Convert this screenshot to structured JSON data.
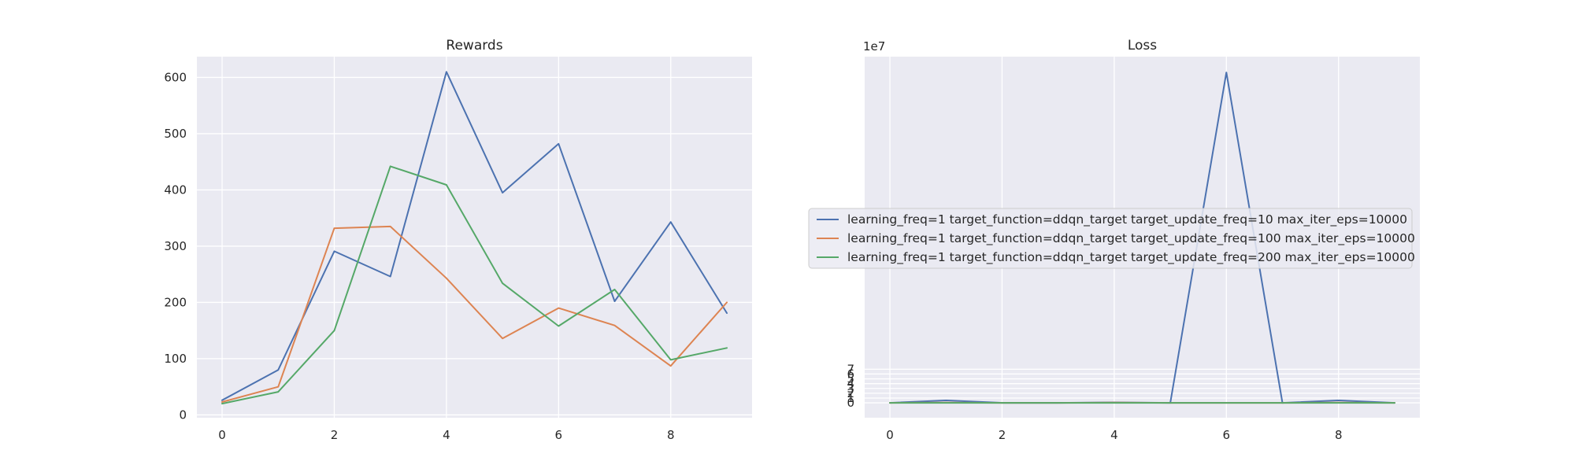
{
  "colors": {
    "background": "#ffffff",
    "plot_area": "#eaeaf2",
    "grid": "#ffffff",
    "series": [
      "#4c72b0",
      "#dd8452",
      "#55a868"
    ]
  },
  "legend": {
    "placement": "center-right",
    "labels": [
      "learning_freq=1 target_function=ddqn_target target_update_freq=10 max_iter_eps=10000",
      "learning_freq=1 target_function=ddqn_target target_update_freq=100 max_iter_eps=10000",
      "learning_freq=1 target_function=ddqn_target target_update_freq=200 max_iter_eps=10000"
    ]
  },
  "chart_data": [
    {
      "type": "line",
      "title": "Rewards",
      "xlabel": "",
      "ylabel": "",
      "grid": true,
      "x": [
        0,
        1,
        2,
        3,
        4,
        5,
        6,
        7,
        8,
        9
      ],
      "xlim": [
        -0.45,
        9.45
      ],
      "ylim": [
        -5,
        637
      ],
      "xticks": [
        0,
        2,
        4,
        6,
        8
      ],
      "yticks": [
        0,
        100,
        200,
        300,
        400,
        500,
        600
      ],
      "series": [
        {
          "values": [
            26,
            80,
            291,
            246,
            610,
            395,
            482,
            202,
            343,
            181
          ]
        },
        {
          "values": [
            23,
            50,
            332,
            335,
            243,
            136,
            190,
            159,
            87,
            200
          ]
        },
        {
          "values": [
            20,
            41,
            150,
            442,
            409,
            234,
            158,
            223,
            98,
            119
          ]
        }
      ]
    },
    {
      "type": "line",
      "title": "Loss",
      "xlabel": "",
      "ylabel": "",
      "grid": true,
      "y_offset_label": "1e7",
      "x": [
        0,
        1,
        2,
        3,
        4,
        5,
        6,
        7,
        8,
        9
      ],
      "xlim": [
        -0.45,
        9.45
      ],
      "ylim": [
        -3.1,
        72.1
      ],
      "xticks": [
        0,
        2,
        4,
        6,
        8
      ],
      "yticks": [
        0,
        1,
        2,
        3,
        4,
        5,
        6,
        7
      ],
      "yticklabels": [
        "0",
        "1",
        "2",
        "3",
        "4",
        "5",
        "6",
        "7"
      ],
      "series": [
        {
          "values": [
            0,
            0.5,
            0,
            0,
            0.1,
            0,
            68.8,
            0,
            0.5,
            0
          ]
        },
        {
          "values": [
            0,
            0.05,
            0,
            0,
            0.05,
            0,
            0,
            0,
            0.05,
            0
          ]
        },
        {
          "values": [
            0,
            0,
            0,
            0,
            0,
            0,
            0,
            0,
            0,
            0
          ]
        }
      ]
    }
  ]
}
